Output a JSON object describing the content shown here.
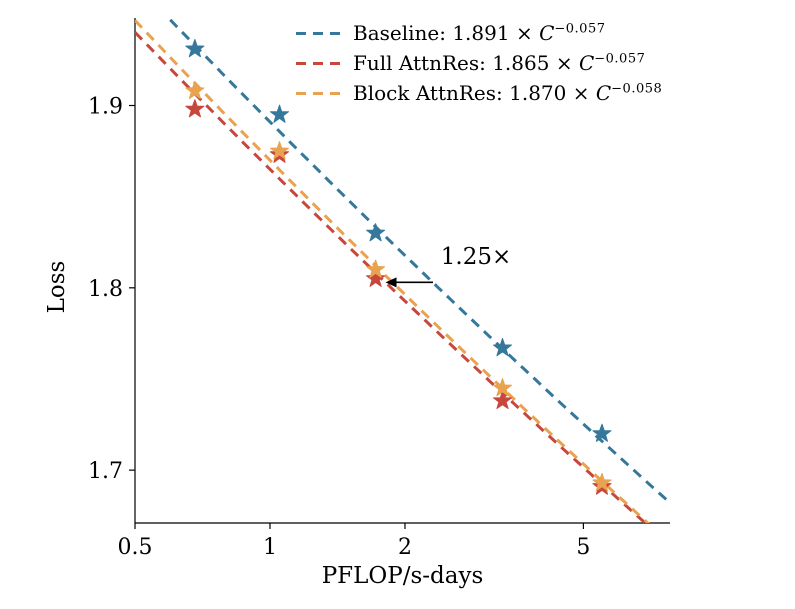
{
  "page": {
    "background": "#ffffff"
  },
  "chart_data": {
    "type": "scatter",
    "title": "",
    "xlabel": "PFLOP/s-days",
    "ylabel": "Loss",
    "x_scale": "log",
    "y_scale": "linear",
    "xlim": [
      0.5,
      7.8
    ],
    "ylim": [
      1.671,
      1.948
    ],
    "x_ticks": {
      "values": [
        0.5,
        1,
        2,
        5
      ],
      "labels": [
        "0.5",
        "1",
        "2",
        "5"
      ]
    },
    "y_ticks": {
      "values": [
        1.7,
        1.8,
        1.9
      ],
      "labels": [
        "1.7",
        "1.8",
        "1.9"
      ]
    },
    "grid": false,
    "legend_position": "top-center-inside",
    "axis_color": "#000000",
    "series": [
      {
        "name": "Baseline",
        "color": "#35789b",
        "line_style": "dashed",
        "marker": "star",
        "fit": {
          "coefficient": 1.891,
          "exponent": -0.057
        },
        "legend": {
          "prefix": "Baseline: 1.891 × ",
          "variable": "C",
          "exponent": "−0.057"
        },
        "points": [
          [
            0.68,
            1.931
          ],
          [
            1.05,
            1.895
          ],
          [
            1.72,
            1.83
          ],
          [
            3.3,
            1.767
          ],
          [
            5.5,
            1.72
          ]
        ]
      },
      {
        "name": "Full AttnRes",
        "color": "#c8473d",
        "line_style": "dashed",
        "marker": "star",
        "fit": {
          "coefficient": 1.865,
          "exponent": -0.057
        },
        "legend": {
          "prefix": "Full AttnRes: 1.865 × ",
          "variable": "C",
          "exponent": "−0.057"
        },
        "points": [
          [
            0.68,
            1.898
          ],
          [
            1.05,
            1.873
          ],
          [
            1.72,
            1.805
          ],
          [
            3.3,
            1.738
          ],
          [
            5.5,
            1.691
          ]
        ]
      },
      {
        "name": "Block AttnRes",
        "color": "#e9a24f",
        "line_style": "dashed",
        "marker": "star",
        "fit": {
          "coefficient": 1.87,
          "exponent": -0.058
        },
        "legend": {
          "prefix": "Block AttnRes: 1.870 × ",
          "variable": "C",
          "exponent": "−0.058"
        },
        "points": [
          [
            0.68,
            1.908
          ],
          [
            1.05,
            1.875
          ],
          [
            1.72,
            1.81
          ],
          [
            3.3,
            1.745
          ],
          [
            5.5,
            1.693
          ]
        ]
      }
    ],
    "annotation": {
      "text": "1.25×",
      "arrow": {
        "y": 1.803,
        "x_from": 2.31,
        "x_to": 1.81
      }
    }
  }
}
